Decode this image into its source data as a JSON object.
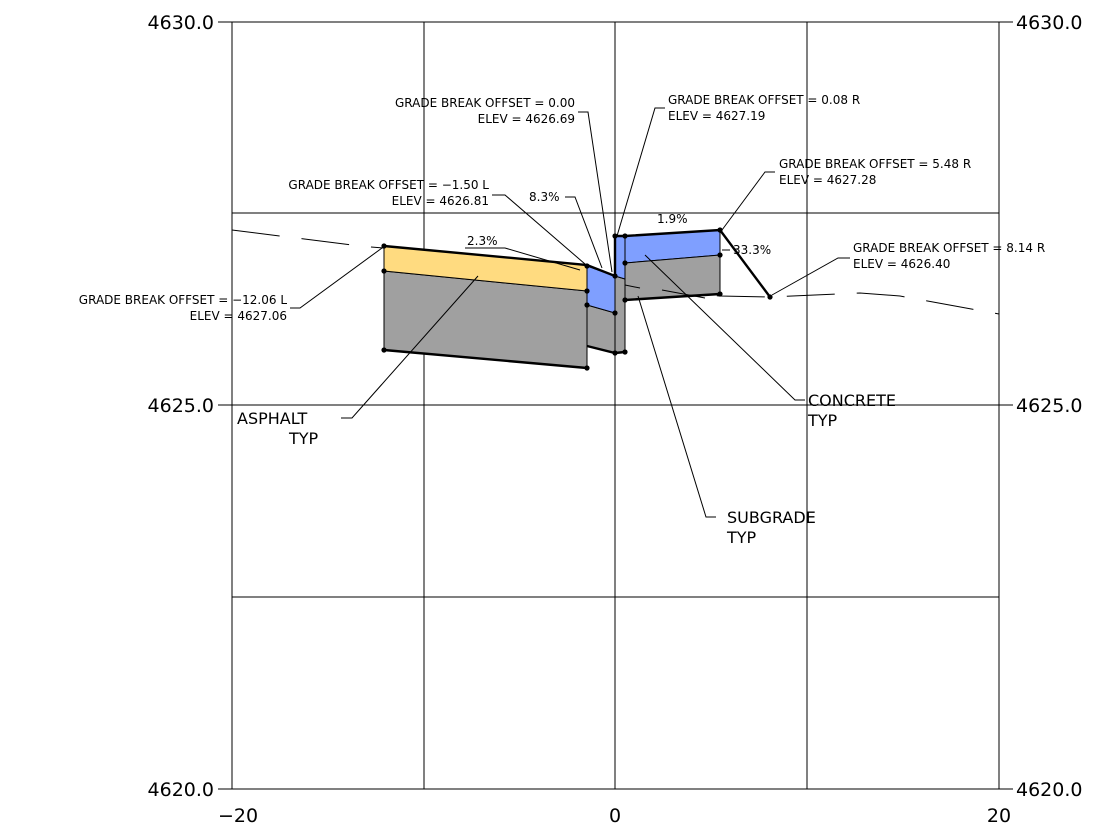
{
  "y_axis": {
    "left_labels": [
      "4630.0",
      "4625.0",
      "4620.0"
    ],
    "right_labels": [
      "4630.0",
      "4625.0",
      "4620.0"
    ]
  },
  "x_axis": {
    "labels": [
      "−20",
      "0",
      "20"
    ]
  },
  "grade_breaks": [
    {
      "offset_text": "GRADE BREAK OFFSET = −12.06 L",
      "elev_text": "ELEV = 4627.06"
    },
    {
      "offset_text": "GRADE BREAK OFFSET = −1.50 L",
      "elev_text": "ELEV = 4626.81"
    },
    {
      "offset_text": "GRADE BREAK OFFSET = 0.00",
      "elev_text": "ELEV = 4626.69"
    },
    {
      "offset_text": "GRADE BREAK OFFSET = 0.08 R",
      "elev_text": "ELEV = 4627.19"
    },
    {
      "offset_text": "GRADE BREAK OFFSET = 5.48 R",
      "elev_text": "ELEV = 4627.28"
    },
    {
      "offset_text": "GRADE BREAK OFFSET = 8.14 R",
      "elev_text": "ELEV = 4626.40"
    }
  ],
  "slopes": [
    "2.3%",
    "8.3%",
    "1.9%",
    "33.3%"
  ],
  "materials": {
    "asphalt": {
      "name": "ASPHALT",
      "note": "TYP",
      "color": "#FFDB80"
    },
    "concrete": {
      "name": "CONCRETE",
      "note": "TYP",
      "color": "#7F9FFF"
    },
    "subgrade": {
      "name": "SUBGRADE",
      "note": "TYP",
      "color": "#A0A0A0"
    }
  }
}
